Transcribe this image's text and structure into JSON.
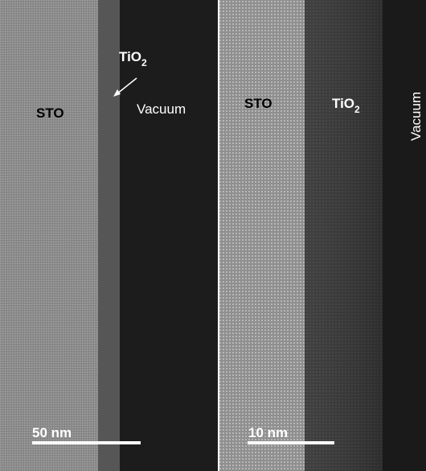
{
  "panels": [
    {
      "labels": {
        "substrate": "STO",
        "film": {
          "main": "TiO",
          "sub": "2"
        },
        "vacuum": "Vacuum"
      },
      "scale_bar": "50 nm"
    },
    {
      "labels": {
        "substrate": "STO",
        "film": {
          "main": "TiO",
          "sub": "2"
        },
        "vacuum": "Vacuum"
      },
      "scale_bar": "10 nm"
    }
  ]
}
